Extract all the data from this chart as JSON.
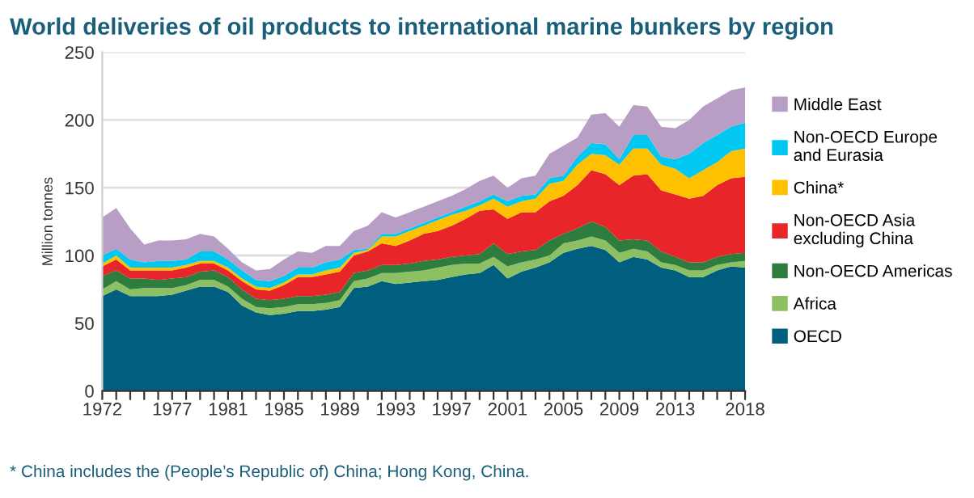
{
  "chart_data": {
    "type": "area",
    "stacked": true,
    "title": "World deliveries of oil products to international marine bunkers by region",
    "ylabel": "Million tonnes",
    "x": [
      1972,
      1973,
      1974,
      1975,
      1976,
      1977,
      1978,
      1979,
      1980,
      1981,
      1982,
      1983,
      1984,
      1985,
      1986,
      1987,
      1988,
      1989,
      1990,
      1991,
      1992,
      1993,
      1994,
      1995,
      1996,
      1997,
      1998,
      1999,
      2000,
      2001,
      2002,
      2003,
      2004,
      2005,
      2006,
      2007,
      2008,
      2009,
      2010,
      2011,
      2012,
      2013,
      2014,
      2015,
      2016,
      2017,
      2018
    ],
    "series": [
      {
        "name": "OECD",
        "color": "#005f7f",
        "values": [
          70,
          75,
          70,
          70,
          70,
          71,
          74,
          77,
          77,
          73,
          63,
          58,
          56,
          57,
          59,
          59,
          60,
          62,
          76,
          77,
          81,
          79,
          80,
          81,
          82,
          84,
          86,
          87,
          93,
          83,
          88,
          91,
          95,
          102,
          105,
          107,
          104,
          95,
          99,
          97,
          91,
          89,
          84,
          84,
          89,
          92,
          91
        ]
      },
      {
        "name": "Africa",
        "color": "#8dc063",
        "values": [
          5,
          6,
          5,
          6,
          6,
          5,
          4,
          5,
          5,
          4,
          5,
          4,
          5,
          5,
          5,
          5,
          5,
          5,
          5,
          6,
          6,
          8,
          8,
          8,
          9,
          9,
          8,
          7,
          6,
          9,
          7,
          6,
          5,
          7,
          6,
          7,
          7,
          7,
          6,
          6,
          4,
          4,
          5,
          5,
          4,
          3,
          5
        ]
      },
      {
        "name": "Non-OECD Americas",
        "color": "#2e7d3f",
        "values": [
          10,
          8,
          8,
          7,
          6,
          7,
          6,
          6,
          7,
          7,
          7,
          6,
          6,
          6,
          6,
          6,
          6,
          6,
          6,
          6,
          6,
          6,
          6,
          7,
          6,
          6,
          6,
          7,
          10,
          9,
          8,
          7,
          11,
          7,
          9,
          11,
          10,
          9,
          7,
          8,
          8,
          6,
          6,
          6,
          6,
          6,
          6
        ]
      },
      {
        "name": "Non-OECD Asia excluding China",
        "color": "#e8262a",
        "values": [
          7,
          8,
          6,
          6,
          7,
          6,
          7,
          6,
          5,
          5,
          6,
          7,
          7,
          10,
          14,
          14,
          15,
          15,
          13,
          14,
          16,
          14,
          17,
          20,
          21,
          23,
          27,
          32,
          25,
          26,
          29,
          28,
          29,
          28,
          32,
          38,
          39,
          41,
          47,
          49,
          45,
          46,
          47,
          49,
          53,
          56,
          56
        ]
      },
      {
        "name": "China*",
        "color": "#ffc000",
        "values": [
          2,
          3,
          2,
          2,
          2,
          2,
          2,
          2,
          2,
          2,
          2,
          2,
          2,
          2,
          2,
          2,
          3,
          3,
          2,
          1,
          5,
          7,
          7,
          6,
          8,
          8,
          6,
          4,
          8,
          9,
          8,
          10,
          13,
          11,
          15,
          12,
          14,
          15,
          20,
          19,
          19,
          19,
          15,
          19,
          17,
          20,
          21
        ]
      },
      {
        "name": "Non-OECD Europe and Eurasia",
        "color": "#00c8f0",
        "values": [
          6,
          5,
          6,
          4,
          5,
          5,
          4,
          7,
          7,
          6,
          6,
          5,
          5,
          5,
          5,
          5,
          6,
          6,
          2,
          1,
          2,
          2,
          2,
          2,
          2,
          2,
          3,
          3,
          3,
          4,
          4,
          3,
          4,
          4,
          6,
          8,
          8,
          4,
          10,
          10,
          6,
          7,
          18,
          20,
          20,
          18,
          19
        ]
      },
      {
        "name": "Middle East",
        "color": "#b89dc4",
        "values": [
          28,
          30,
          23,
          13,
          15,
          15,
          15,
          13,
          11,
          8,
          6,
          7,
          9,
          12,
          12,
          11,
          12,
          10,
          14,
          17,
          16,
          12,
          12,
          12,
          12,
          12,
          13,
          15,
          14,
          10,
          13,
          14,
          18,
          22,
          14,
          21,
          23,
          24,
          22,
          21,
          22,
          23,
          25,
          27,
          27,
          27,
          26
        ]
      }
    ],
    "xlim": [
      1972,
      2018
    ],
    "xticks": [
      1972,
      {
        "value": 1973,
        "label": null
      },
      {
        "value": 1974,
        "label": null
      },
      {
        "value": 1975,
        "label": null
      },
      {
        "value": 1976,
        "label": null
      },
      1977,
      {
        "value": 1978,
        "label": null
      },
      {
        "value": 1979,
        "label": null
      },
      {
        "value": 1980,
        "label": null
      },
      1981,
      {
        "value": 1982,
        "label": null
      },
      {
        "value": 1983,
        "label": null
      },
      {
        "value": 1984,
        "label": null
      },
      1985,
      {
        "value": 1986,
        "label": null
      },
      {
        "value": 1987,
        "label": null
      },
      {
        "value": 1988,
        "label": null
      },
      1989,
      {
        "value": 1990,
        "label": null
      },
      {
        "value": 1991,
        "label": null
      },
      {
        "value": 1992,
        "label": null
      },
      1993,
      {
        "value": 1994,
        "label": null
      },
      {
        "value": 1995,
        "label": null
      },
      {
        "value": 1996,
        "label": null
      },
      1997,
      {
        "value": 1998,
        "label": null
      },
      {
        "value": 1999,
        "label": null
      },
      {
        "value": 2000,
        "label": null
      },
      2001,
      {
        "value": 2002,
        "label": null
      },
      {
        "value": 2003,
        "label": null
      },
      {
        "value": 2004,
        "label": null
      },
      2005,
      {
        "value": 2006,
        "label": null
      },
      {
        "value": 2007,
        "label": null
      },
      {
        "value": 2008,
        "label": null
      },
      2009,
      {
        "value": 2010,
        "label": null
      },
      {
        "value": 2011,
        "label": null
      },
      {
        "value": 2012,
        "label": null
      },
      2013,
      {
        "value": 2014,
        "label": null
      },
      {
        "value": 2015,
        "label": null
      },
      {
        "value": 2016,
        "label": null
      },
      {
        "value": 2017,
        "label": null
      },
      2018
    ],
    "ylim": [
      0,
      250
    ],
    "yticks": [
      0,
      50,
      100,
      150,
      200,
      250
    ],
    "grid": "y",
    "legend": "right",
    "annotations": [
      "* China includes the (People’s Republic of) China; Hong Kong, China."
    ]
  }
}
